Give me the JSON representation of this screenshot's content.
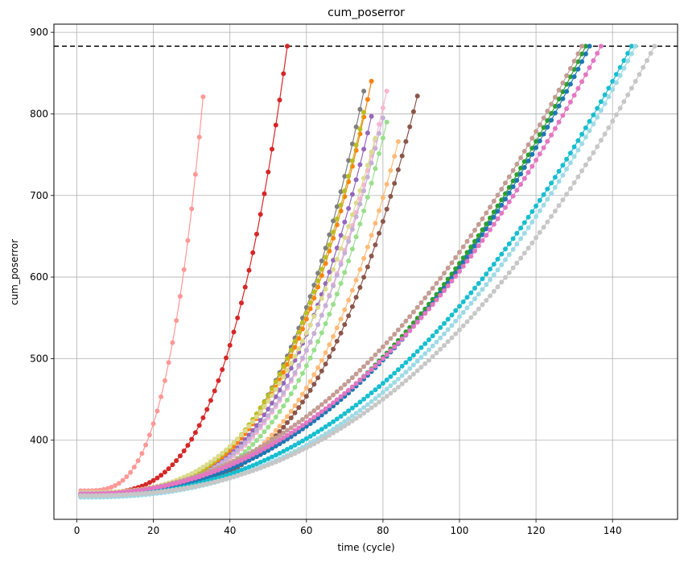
{
  "chart_data": {
    "type": "scatter",
    "title": "cum_poserror",
    "xlabel": "time (cycle)",
    "ylabel": "cum_poserror",
    "xlim": [
      -6,
      157
    ],
    "ylim": [
      303,
      910
    ],
    "x_ticks": [
      0,
      20,
      40,
      60,
      80,
      100,
      120,
      140
    ],
    "y_ticks": [
      400,
      500,
      600,
      700,
      800,
      900
    ],
    "grid": true,
    "threshold_line": {
      "y": 883,
      "style": "dashed",
      "color": "#000000"
    },
    "series": [
      {
        "color": "#ff9896",
        "end_x": 33,
        "start_y": 338,
        "end_y": 821,
        "power": 3.4
      },
      {
        "color": "#d62728",
        "end_x": 55,
        "start_y": 335,
        "end_y": 883,
        "power": 3.4
      },
      {
        "color": "#7f7f7f",
        "end_x": 75,
        "start_y": 334,
        "end_y": 828,
        "power": 3.4
      },
      {
        "color": "#ff7f0e",
        "end_x": 77,
        "start_y": 335,
        "end_y": 840,
        "power": 3.4
      },
      {
        "color": "#bcbd22",
        "end_x": 75,
        "start_y": 335,
        "end_y": 802,
        "power": 3.3
      },
      {
        "color": "#9467bd",
        "end_x": 77,
        "start_y": 334,
        "end_y": 797,
        "power": 3.4
      },
      {
        "color": "#f7b6d2",
        "end_x": 81,
        "start_y": 334,
        "end_y": 828,
        "power": 3.4
      },
      {
        "color": "#98df8a",
        "end_x": 81,
        "start_y": 334,
        "end_y": 790,
        "power": 3.5
      },
      {
        "color": "#dbdb8d",
        "end_x": 78,
        "start_y": 336,
        "end_y": 770,
        "power": 3.0
      },
      {
        "color": "#c5b0d5",
        "end_x": 80,
        "start_y": 335,
        "end_y": 795,
        "power": 3.3
      },
      {
        "color": "#ffbb78",
        "end_x": 84,
        "start_y": 333,
        "end_y": 766,
        "power": 3.5
      },
      {
        "color": "#8c564b",
        "end_x": 89,
        "start_y": 333,
        "end_y": 822,
        "power": 3.5
      },
      {
        "color": "#2ca02c",
        "end_x": 133,
        "start_y": 333,
        "end_y": 883,
        "power": 2.3
      },
      {
        "color": "#1f77b4",
        "end_x": 134,
        "start_y": 332,
        "end_y": 883,
        "power": 2.3
      },
      {
        "color": "#c49c94",
        "end_x": 132,
        "start_y": 334,
        "end_y": 883,
        "power": 2.2
      },
      {
        "color": "#e377c2",
        "end_x": 137,
        "start_y": 334,
        "end_y": 883,
        "power": 2.2
      },
      {
        "color": "#17becf",
        "end_x": 145,
        "start_y": 331,
        "end_y": 883,
        "power": 2.3
      },
      {
        "color": "#9edae5",
        "end_x": 146,
        "start_y": 330,
        "end_y": 883,
        "power": 2.4
      },
      {
        "color": "#c7c7c7",
        "end_x": 151,
        "start_y": 332,
        "end_y": 883,
        "power": 2.4
      }
    ]
  }
}
